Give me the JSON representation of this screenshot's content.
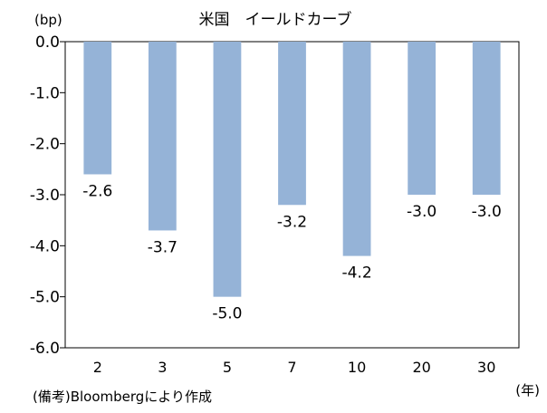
{
  "chart_data": {
    "type": "bar",
    "title": "米国　イールドカーブ",
    "ylabel": "(bp)",
    "xlabel": "(年)",
    "categories": [
      "2",
      "3",
      "5",
      "7",
      "10",
      "20",
      "30"
    ],
    "values": [
      -2.6,
      -3.7,
      -5.0,
      -3.2,
      -4.2,
      -3.0,
      -3.0
    ],
    "data_labels": [
      "-2.6",
      "-3.7",
      "-5.0",
      "-3.2",
      "-4.2",
      "-3.0",
      "-3.0"
    ],
    "ylim": [
      -6.0,
      0.0
    ],
    "yticks": [
      0.0,
      -1.0,
      -2.0,
      -3.0,
      -4.0,
      -5.0,
      -6.0
    ],
    "ytick_labels": [
      "0.0",
      "-1.0",
      "-2.0",
      "-3.0",
      "-4.0",
      "-5.0",
      "-6.0"
    ],
    "grid": false,
    "bar_color": "#95b3d7",
    "source_note": "(備考)Bloombergにより作成"
  }
}
